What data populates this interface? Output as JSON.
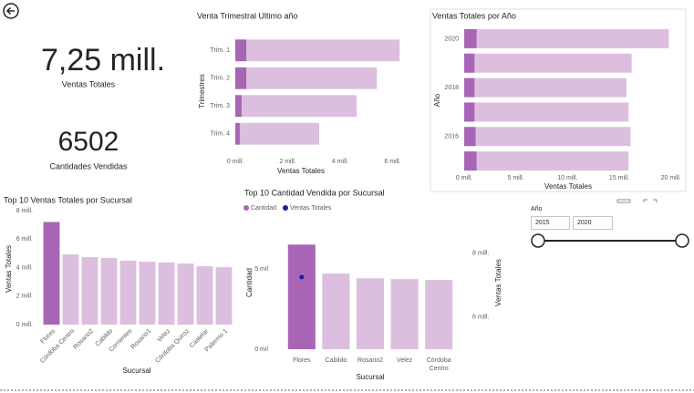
{
  "cards": [
    {
      "value": 7250000,
      "value_label": "7,25 mill.",
      "label": "Ventas Totales"
    },
    {
      "value": 6502,
      "label": "Cantidades Vendidas"
    }
  ],
  "slicer": {
    "title": "Año",
    "start": 2015,
    "end": 2020
  },
  "chart_data": [
    {
      "type": "hbar",
      "title": "Venta Trimestral Ultimo año",
      "categories": [
        "Trim. 1",
        "Trim. 2",
        "Trim. 3",
        "Trim. 4"
      ],
      "series": [
        {
          "color": "#dcbfdf",
          "values": [
            6270000,
            5400000,
            4630000,
            3200000
          ]
        },
        {
          "color": "#a865b5",
          "values": [
            420000,
            420000,
            240000,
            170000
          ]
        }
      ],
      "xlim": [
        0,
        6400000
      ],
      "xticks": [
        {
          "value": 0,
          "label": "0 mill."
        },
        {
          "value": 2000000,
          "label": "2 mill."
        },
        {
          "value": 4000000,
          "label": "4 mill."
        },
        {
          "value": 6000000,
          "label": "6 mill."
        }
      ],
      "xlabel": "Ventas Totales",
      "ylabel": "Trimestres"
    },
    {
      "type": "hbar",
      "title": "Ventas Totales por Año",
      "categories": [
        "2020",
        null,
        "2018",
        null,
        "2016",
        null
      ],
      "series": [
        {
          "color": "#dcbfdf",
          "values": [
            19800000,
            16200000,
            15700000,
            15900000,
            16100000,
            15900000
          ]
        },
        {
          "color": "#a865b5",
          "values": [
            1200000,
            1000000,
            1000000,
            1000000,
            1100000,
            1200000
          ]
        }
      ],
      "xlim": [
        0,
        21000000
      ],
      "xticks": [
        {
          "value": 0,
          "label": "0 mill."
        },
        {
          "value": 5000000,
          "label": "5 mill."
        },
        {
          "value": 10000000,
          "label": "10 mill."
        },
        {
          "value": 15000000,
          "label": "15 mill."
        },
        {
          "value": 20000000,
          "label": "20 mill."
        }
      ],
      "xlabel": "Ventas Totales",
      "ylabel": "Año"
    },
    {
      "type": "bar",
      "title": "Top 10 Ventas Totales por Sucursal",
      "categories": [
        "Flores",
        "Córdoba Centro",
        "Rosario2",
        "Cabildo",
        "Corrientes",
        "Rosario1",
        "Velez",
        "Córdoba Quiroz",
        "Castelar",
        "Palermo 1"
      ],
      "values": [
        7200000,
        4930000,
        4740000,
        4680000,
        4490000,
        4420000,
        4360000,
        4290000,
        4100000,
        4040000
      ],
      "colors": [
        "#a865b5",
        "#dcbfdf",
        "#dcbfdf",
        "#dcbfdf",
        "#dcbfdf",
        "#dcbfdf",
        "#dcbfdf",
        "#dcbfdf",
        "#dcbfdf",
        "#dcbfdf"
      ],
      "ylim": [
        0,
        8000000
      ],
      "yticks": [
        {
          "value": 0,
          "label": "0 mill."
        },
        {
          "value": 2000000,
          "label": "2 mill."
        },
        {
          "value": 4000000,
          "label": "4 mill."
        },
        {
          "value": 6000000,
          "label": "6 mill."
        },
        {
          "value": 8000000,
          "label": "8 mill."
        }
      ],
      "xlabel": "Sucursal",
      "ylabel": "Ventas Totales"
    },
    {
      "type": "combo",
      "title": "Top 10 Cantidad Vendida por Sucursal",
      "categories": [
        "Flores",
        "Cabildo",
        "Rosario2",
        "Velez",
        "Córdoba Centro"
      ],
      "series": [
        {
          "name": "Cantidad",
          "color": "#a865b5",
          "values": [
            6530,
            4720,
            4430,
            4375,
            4320
          ],
          "colors": [
            "#a865b5",
            "#dcbfdf",
            "#dcbfdf",
            "#dcbfdf",
            "#dcbfdf"
          ]
        },
        {
          "name": "Ventas Totales",
          "color": "#12239e",
          "values": [
            7250000,
            null,
            null,
            null,
            null
          ],
          "axis": "y2"
        }
      ],
      "ylim": [
        0,
        7000
      ],
      "yticks": [
        {
          "value": 0,
          "label": "0 mil"
        },
        {
          "value": 5000,
          "label": "5 mil"
        }
      ],
      "y2lim": [
        5000000,
        8500000
      ],
      "y2ticks": [
        {
          "value": 6000000,
          "label": "6 mill."
        },
        {
          "value": 8000000,
          "label": "8 mill."
        }
      ],
      "xlabel": "Sucursal",
      "ylabel": "Cantidad",
      "y2label": "Ventas Totales"
    }
  ]
}
